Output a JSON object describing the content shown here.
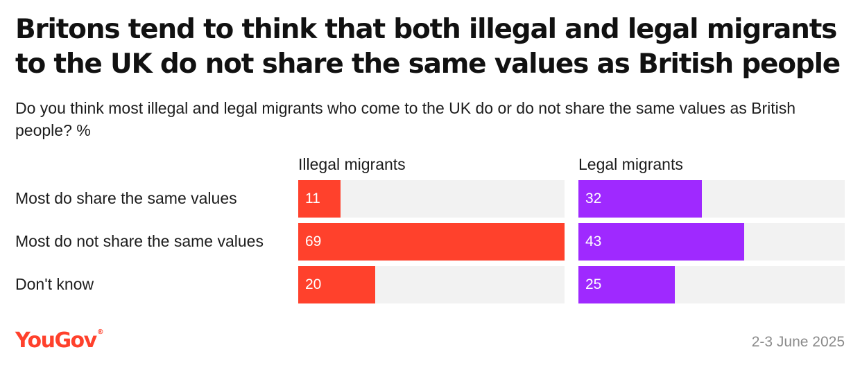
{
  "title": "Britons tend to think that both illegal and legal migrants to the UK do not share the same values as British people",
  "subtitle": "Do you think most illegal and legal migrants who come to the UK do or do not share the same values as British people? %",
  "chart_data": {
    "type": "bar",
    "orientation": "horizontal",
    "categories": [
      "Most do share the same values",
      "Most do not share the same values",
      "Don't know"
    ],
    "xlim": [
      0,
      69
    ],
    "series": [
      {
        "name": "Illegal migrants",
        "color": "#ff412c",
        "values": [
          11,
          69,
          20
        ]
      },
      {
        "name": "Legal migrants",
        "color": "#9f29ff",
        "values": [
          32,
          43,
          25
        ]
      }
    ]
  },
  "footer": {
    "logo_text": "YouGov",
    "logo_mark": "®",
    "logo_color": "#ff412c",
    "date": "2-3 June 2025"
  }
}
